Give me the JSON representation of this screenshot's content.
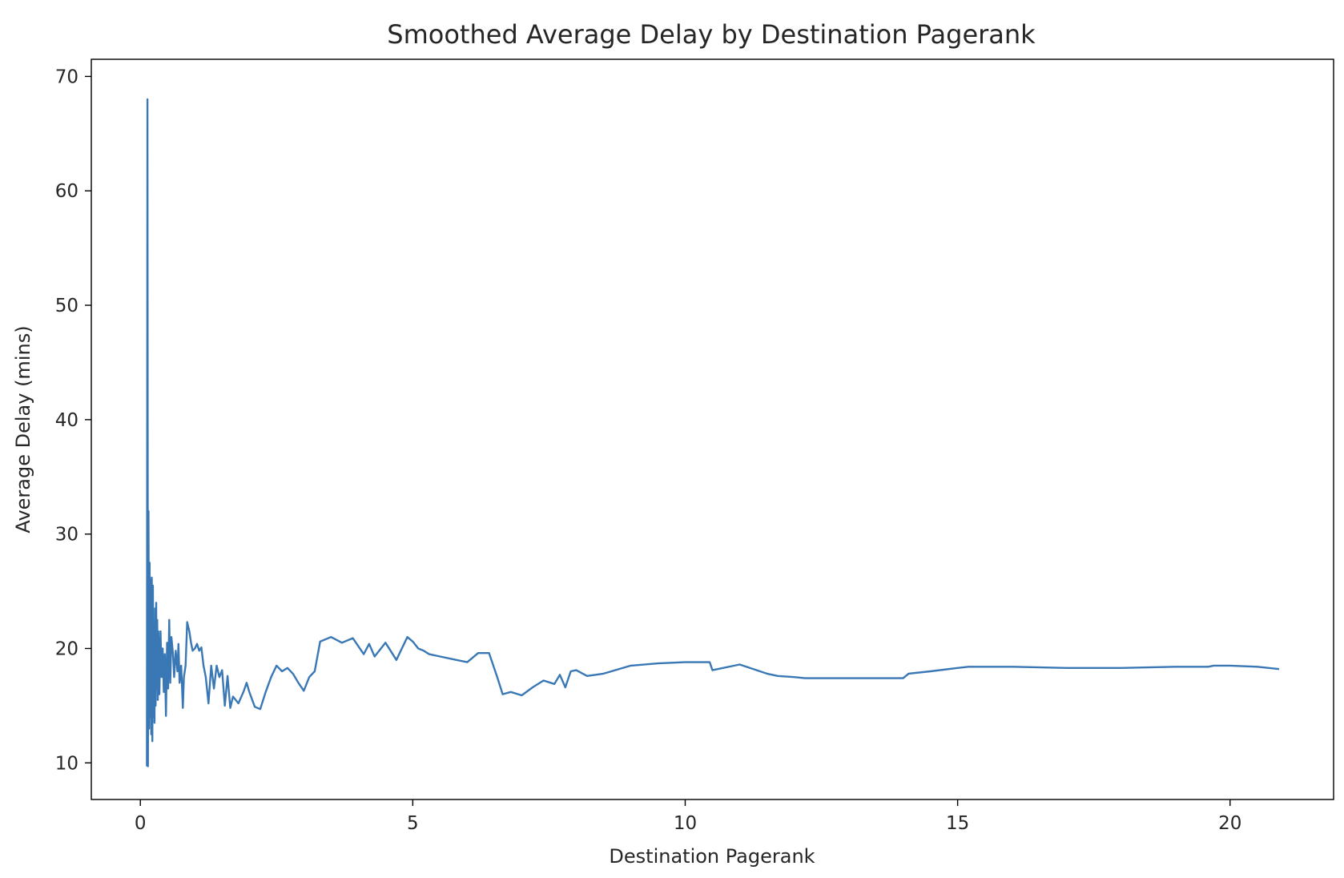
{
  "chart_data": {
    "type": "line",
    "title": "Smoothed Average Delay by Destination Pagerank",
    "xlabel": "Destination Pagerank",
    "ylabel": "Average Delay (mins)",
    "xlim": [
      -0.9,
      21.9
    ],
    "ylim": [
      6.8,
      71.5
    ],
    "xticks": [
      0,
      5,
      10,
      15,
      20
    ],
    "yticks": [
      10,
      20,
      30,
      40,
      50,
      60,
      70
    ],
    "grid": false,
    "line_color": "#3a78b5",
    "series": [
      {
        "x": [
          0.12,
          0.13,
          0.14,
          0.15,
          0.16,
          0.17,
          0.18,
          0.19,
          0.2,
          0.21,
          0.22,
          0.23,
          0.24,
          0.25,
          0.26,
          0.27,
          0.28,
          0.29,
          0.3,
          0.31,
          0.32,
          0.33,
          0.35,
          0.37,
          0.39,
          0.41,
          0.43,
          0.45,
          0.47,
          0.49,
          0.51,
          0.53,
          0.55,
          0.57,
          0.6,
          0.62,
          0.65,
          0.68,
          0.7,
          0.72,
          0.75,
          0.78,
          0.8,
          0.83,
          0.86,
          0.9,
          0.93,
          0.96,
          1.0,
          1.04,
          1.08,
          1.12,
          1.16,
          1.2,
          1.25,
          1.3,
          1.35,
          1.4,
          1.45,
          1.5,
          1.55,
          1.6,
          1.65,
          1.7,
          1.8,
          1.9,
          1.95,
          2.0,
          2.1,
          2.2,
          2.3,
          2.4,
          2.5,
          2.6,
          2.7,
          2.8,
          2.9,
          3.0,
          3.1,
          3.2,
          3.3,
          3.5,
          3.7,
          3.9,
          4.0,
          4.1,
          4.2,
          4.3,
          4.5,
          4.7,
          4.9,
          5.0,
          5.1,
          5.2,
          5.3,
          5.5,
          5.8,
          6.0,
          6.2,
          6.4,
          6.55,
          6.65,
          6.8,
          7.0,
          7.2,
          7.4,
          7.6,
          7.7,
          7.8,
          7.9,
          8.0,
          8.2,
          8.5,
          9.0,
          9.5,
          10.0,
          10.45,
          10.5,
          11.0,
          11.5,
          11.7,
          12.0,
          12.2,
          12.3,
          13.0,
          13.5,
          14.0,
          14.1,
          14.5,
          15.0,
          15.2,
          16.0,
          17.0,
          18.0,
          19.0,
          19.6,
          19.7,
          20.0,
          20.5,
          20.9
        ],
        "y": [
          9.7,
          68.0,
          9.7,
          32.0,
          13.0,
          27.5,
          14.0,
          26.0,
          12.5,
          26.2,
          11.9,
          25.5,
          14.0,
          22.0,
          13.5,
          23.5,
          15.0,
          24.0,
          16.5,
          22.5,
          15.5,
          21.5,
          16.0,
          21.5,
          17.5,
          20.0,
          16.2,
          19.5,
          14.1,
          20.5,
          16.5,
          22.5,
          17.0,
          21.0,
          19.5,
          17.5,
          19.8,
          18.0,
          20.4,
          17.0,
          18.5,
          14.8,
          17.5,
          18.5,
          22.3,
          21.5,
          20.5,
          19.8,
          20.0,
          20.4,
          19.8,
          20.1,
          18.5,
          17.5,
          15.2,
          18.5,
          16.5,
          18.5,
          17.5,
          18.1,
          15.0,
          17.6,
          14.8,
          15.8,
          15.2,
          16.3,
          17.0,
          16.2,
          14.9,
          14.7,
          16.2,
          17.5,
          18.5,
          18.0,
          18.3,
          17.8,
          17.0,
          16.3,
          17.5,
          18.0,
          20.6,
          21.0,
          20.5,
          20.9,
          20.2,
          19.5,
          20.4,
          19.3,
          20.5,
          19.0,
          21.0,
          20.6,
          20.0,
          19.8,
          19.5,
          19.3,
          19.0,
          18.8,
          19.6,
          19.6,
          17.5,
          16.0,
          16.2,
          15.9,
          16.6,
          17.2,
          16.9,
          17.7,
          16.6,
          18.0,
          18.1,
          17.6,
          17.8,
          18.5,
          18.7,
          18.8,
          18.8,
          18.1,
          18.6,
          17.8,
          17.6,
          17.5,
          17.4,
          17.4,
          17.4,
          17.4,
          17.4,
          17.8,
          18.0,
          18.3,
          18.4,
          18.4,
          18.3,
          18.3,
          18.4,
          18.4,
          18.5,
          18.5,
          18.4,
          18.2
        ]
      }
    ]
  }
}
